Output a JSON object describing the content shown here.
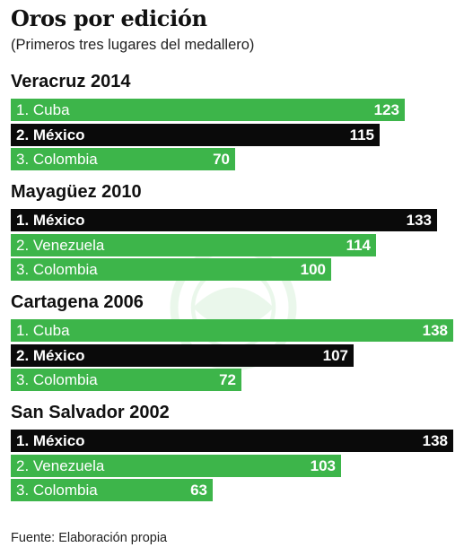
{
  "header": {
    "title": "Oros por edición",
    "subtitle": "(Primeros tres lugares del medallero)"
  },
  "footer": {
    "source": "Fuente: Elaboración propia"
  },
  "colors": {
    "green": "#3db54a",
    "black": "#0a0a0a",
    "label_text": "#ffffff"
  },
  "chart_data": {
    "type": "bar",
    "orientation": "horizontal",
    "title": "Oros por edición",
    "subtitle": "(Primeros tres lugares del medallero)",
    "xlim": [
      0,
      138
    ],
    "groups": [
      {
        "name": "Veracruz 2014",
        "bars": [
          {
            "label": "1. Cuba",
            "value": 123,
            "color": "green"
          },
          {
            "label": "2. México",
            "value": 115,
            "color": "black"
          },
          {
            "label": "3. Colombia",
            "value": 70,
            "color": "green"
          }
        ]
      },
      {
        "name": "Mayagüez 2010",
        "bars": [
          {
            "label": "1. México",
            "value": 133,
            "color": "black"
          },
          {
            "label": "2. Venezuela",
            "value": 114,
            "color": "green"
          },
          {
            "label": "3. Colombia",
            "value": 100,
            "color": "green"
          }
        ]
      },
      {
        "name": "Cartagena 2006",
        "bars": [
          {
            "label": "1. Cuba",
            "value": 138,
            "color": "green"
          },
          {
            "label": "2. México",
            "value": 107,
            "color": "black"
          },
          {
            "label": "3. Colombia",
            "value": 72,
            "color": "green"
          }
        ]
      },
      {
        "name": "San Salvador 2002",
        "bars": [
          {
            "label": "1. México",
            "value": 138,
            "color": "black"
          },
          {
            "label": "2. Venezuela",
            "value": 103,
            "color": "green"
          },
          {
            "label": "3. Colombia",
            "value": 63,
            "color": "green"
          }
        ]
      }
    ]
  }
}
